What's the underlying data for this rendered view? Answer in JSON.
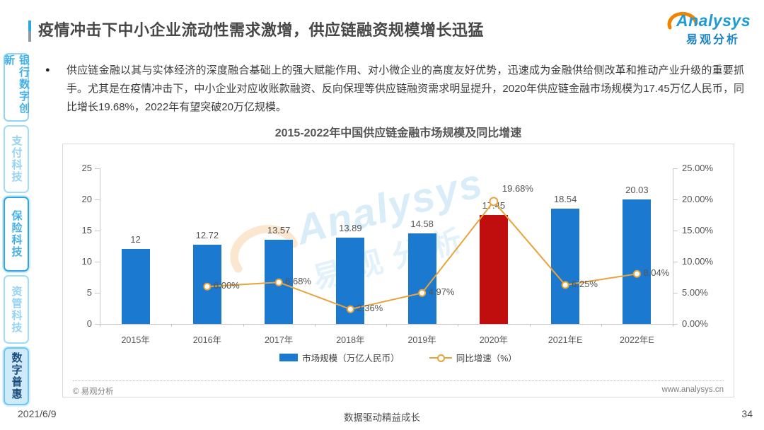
{
  "page": {
    "title": "疫情冲击下中小企业流动性需求激增，供应链融资规模增长迅猛",
    "date": "2021/6/9",
    "slogan": "数据驱动精益成长",
    "page_number": "34"
  },
  "logo": {
    "brand": "Analysys",
    "brand_cn": "易观分析"
  },
  "sidebar": {
    "items": [
      {
        "id": "banking-digital-innovation",
        "label": "银行数字创新",
        "variant": "normal"
      },
      {
        "id": "payment-tech",
        "label": "支付科技",
        "variant": "muted"
      },
      {
        "id": "insurance-tech",
        "label": "保险科技",
        "variant": "outlined"
      },
      {
        "id": "asset-management-tech",
        "label": "资管科技",
        "variant": "muted"
      },
      {
        "id": "digital-inclusion",
        "label": "数字普惠",
        "variant": "active"
      }
    ]
  },
  "content": {
    "bullet_text": "供应链金融以其与实体经济的深度融合基础上的强大赋能作用、对小微企业的高度友好优势，迅速成为金融供给侧改革和推动产业升级的重要抓手。尤其是在疫情冲击下，中小企业对应收账款融资、反向保理等供应链融资需求明显提升，2020年供应链金融市场规模为17.45万亿人民币，同比增长19.68%，2022年有望突破20万亿规模。"
  },
  "chart_card": {
    "source": "© 易观分析",
    "website": "www.analysys.cn"
  },
  "chart_data": {
    "type": "bar+line",
    "title": "2015-2022年中国供应链金融市场规模及同比增速",
    "categories": [
      "2015年",
      "2016年",
      "2017年",
      "2018年",
      "2019年",
      "2020年",
      "2021年E",
      "2022年E"
    ],
    "series": [
      {
        "name": "市场规模（万亿人民币）",
        "type": "bar",
        "values": [
          12,
          12.72,
          13.57,
          13.89,
          14.58,
          17.45,
          18.54,
          20.03
        ],
        "labels": [
          "12",
          "12.72",
          "13.57",
          "13.89",
          "14.58",
          "17.45",
          "18.54",
          "20.03"
        ],
        "color": "#1c79d0",
        "highlight_color": "#c00d0d",
        "highlight_index": 5
      },
      {
        "name": "同比增速（%）",
        "type": "line",
        "values": [
          null,
          6.0,
          6.68,
          2.36,
          4.97,
          19.68,
          6.25,
          8.04
        ],
        "labels": [
          "",
          "6.00%",
          "6.68%",
          "2.36%",
          "4.97%",
          "19.68%",
          "6.25%",
          "8.04%"
        ],
        "color": "#e8a33c"
      }
    ],
    "left_axis": {
      "min": 0,
      "max": 25,
      "ticks": [
        "0",
        "5",
        "10",
        "15",
        "20",
        "25"
      ]
    },
    "right_axis": {
      "min": 0,
      "max": 25,
      "ticks": [
        "0.00%",
        "5.00%",
        "10.00%",
        "15.00%",
        "20.00%",
        "25.00%"
      ]
    },
    "legend_position": "bottom",
    "grid": false
  }
}
